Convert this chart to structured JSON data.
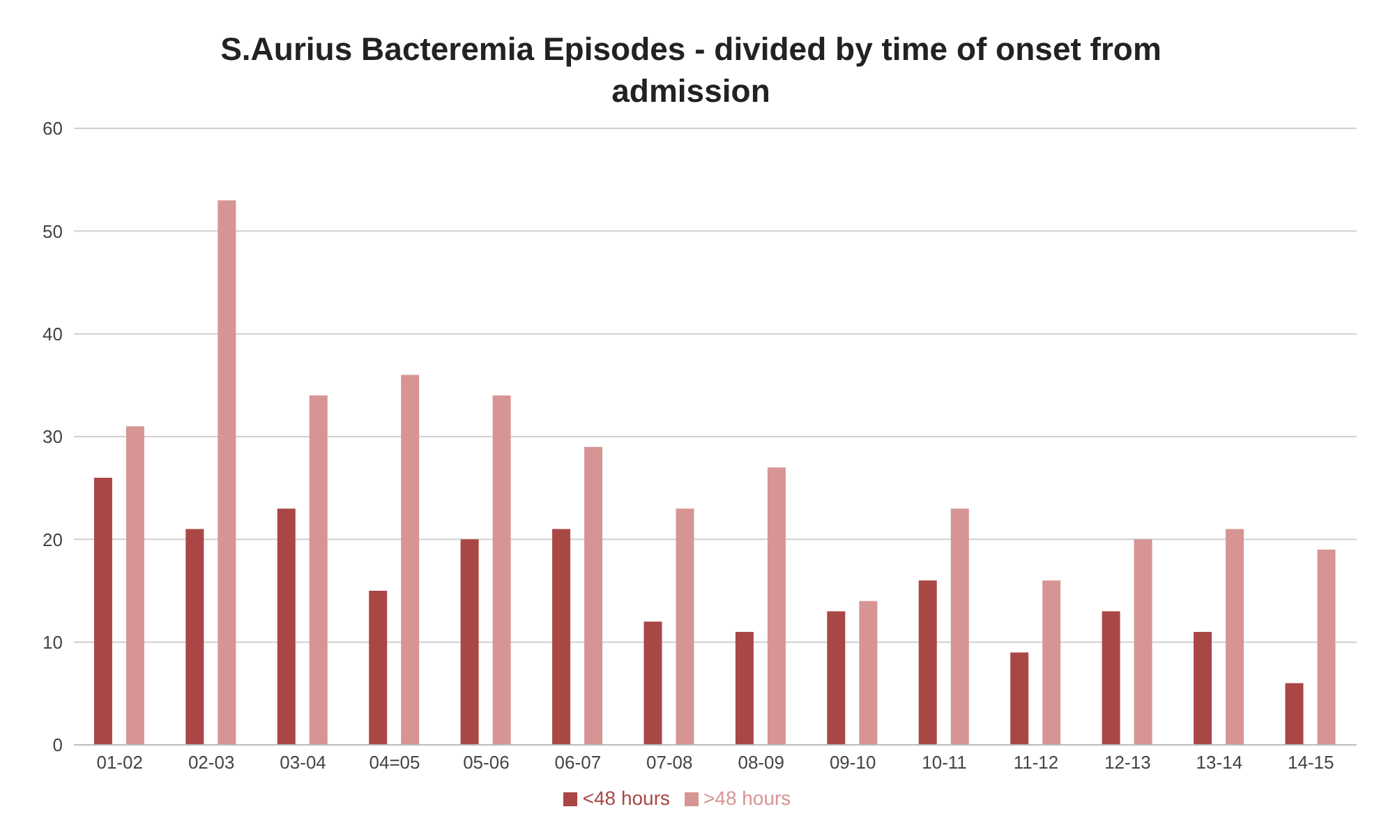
{
  "chart_data": {
    "type": "bar",
    "title": "S.Aurius Bacteremia Episodes - divided by time of onset from admission",
    "categories": [
      "01-02",
      "02-03",
      "03-04",
      "04=05",
      "05-06",
      "06-07",
      "07-08",
      "08-09",
      "09-10",
      "10-11",
      "11-12",
      "12-13",
      "13-14",
      "14-15"
    ],
    "series": [
      {
        "name": "<48 hours",
        "color": "#a94745",
        "values": [
          26,
          21,
          23,
          15,
          20,
          21,
          12,
          11,
          13,
          16,
          9,
          13,
          11,
          6
        ]
      },
      {
        "name": ">48 hours",
        "color": "#d69594",
        "values": [
          31,
          53,
          34,
          36,
          34,
          29,
          23,
          27,
          14,
          23,
          16,
          20,
          21,
          19
        ]
      }
    ],
    "ylim": [
      0,
      60
    ],
    "yticks": [
      0,
      10,
      20,
      30,
      40,
      50,
      60
    ],
    "grid": "y",
    "legend": "bottom"
  }
}
